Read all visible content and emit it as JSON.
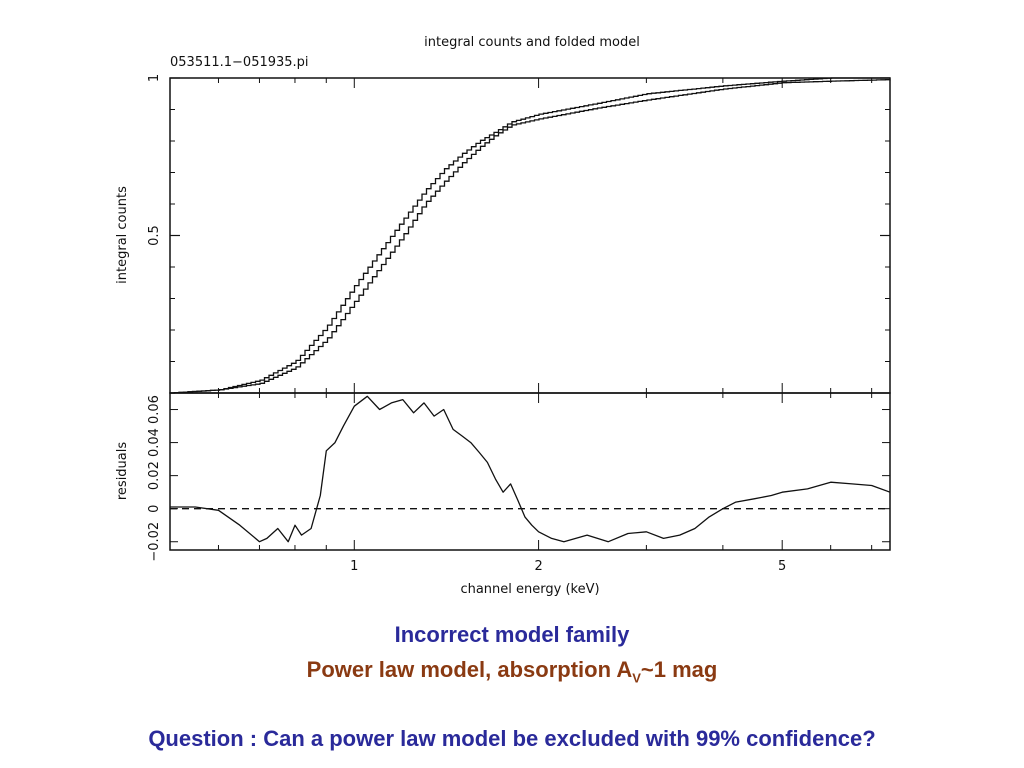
{
  "captions": {
    "line1": "Incorrect model family",
    "line2_prefix": "Power law model, absorption A",
    "line2_sub": "V",
    "line2_suffix": "~1 mag",
    "question": "Question : Can a power law model be excluded with 99% confidence?"
  },
  "chart_data": [
    {
      "type": "line",
      "title": "integral counts and folded model",
      "subtitle": "053511.1−051935.pi",
      "ylabel": "integral counts",
      "xlabel": "",
      "xscale": "log",
      "xlim": [
        0.5,
        7.5
      ],
      "ylim": [
        0,
        1.0
      ],
      "yticks": [
        0.5,
        1
      ],
      "ytick_labels": [
        "0.5",
        "1"
      ],
      "series": [
        {
          "style": "step",
          "x": [
            0.5,
            0.6,
            0.7,
            0.8,
            0.9,
            1.0,
            1.1,
            1.2,
            1.3,
            1.4,
            1.5,
            1.6,
            1.7,
            1.8,
            2.0,
            2.5,
            3.0,
            4.0,
            5.0,
            6.0,
            7.5
          ],
          "y": [
            0.0,
            0.01,
            0.04,
            0.1,
            0.21,
            0.34,
            0.45,
            0.55,
            0.64,
            0.71,
            0.76,
            0.8,
            0.83,
            0.86,
            0.885,
            0.92,
            0.95,
            0.975,
            0.99,
            1.0,
            1.0
          ]
        },
        {
          "style": "step",
          "x": [
            0.5,
            0.6,
            0.7,
            0.8,
            0.9,
            1.0,
            1.1,
            1.2,
            1.3,
            1.4,
            1.5,
            1.6,
            1.7,
            1.8,
            2.0,
            2.5,
            3.0,
            4.0,
            5.0,
            6.0,
            7.5
          ],
          "y": [
            0.0,
            0.01,
            0.03,
            0.08,
            0.17,
            0.29,
            0.4,
            0.5,
            0.6,
            0.67,
            0.73,
            0.78,
            0.82,
            0.85,
            0.87,
            0.905,
            0.93,
            0.965,
            0.985,
            0.99,
            0.995
          ]
        }
      ]
    },
    {
      "type": "line",
      "title": "",
      "xlabel": "channel energy (keV)",
      "ylabel": "residuals",
      "xscale": "log",
      "xlim": [
        0.5,
        7.5
      ],
      "ylim": [
        -0.025,
        0.07
      ],
      "xticks": [
        1,
        2,
        5
      ],
      "xtick_labels": [
        "1",
        "2",
        "5"
      ],
      "yticks": [
        -0.02,
        0,
        0.02,
        0.04,
        0.06
      ],
      "ytick_labels": [
        "−0.02",
        "0",
        "0.02",
        "0.04",
        "0.06"
      ],
      "reference_line": {
        "y": 0,
        "style": "dashed"
      },
      "series": [
        {
          "x": [
            0.5,
            0.55,
            0.6,
            0.65,
            0.7,
            0.72,
            0.75,
            0.78,
            0.8,
            0.82,
            0.85,
            0.88,
            0.9,
            0.93,
            0.96,
            1.0,
            1.05,
            1.1,
            1.15,
            1.2,
            1.25,
            1.3,
            1.35,
            1.4,
            1.45,
            1.5,
            1.55,
            1.6,
            1.65,
            1.7,
            1.75,
            1.8,
            1.85,
            1.9,
            1.95,
            2.0,
            2.1,
            2.2,
            2.4,
            2.6,
            2.8,
            3.0,
            3.2,
            3.4,
            3.6,
            3.8,
            4.0,
            4.2,
            4.5,
            4.8,
            5.0,
            5.5,
            6.0,
            6.5,
            7.0,
            7.5
          ],
          "y": [
            0.001,
            0.001,
            -0.001,
            -0.01,
            -0.02,
            -0.018,
            -0.012,
            -0.02,
            -0.01,
            -0.016,
            -0.012,
            0.008,
            0.035,
            0.04,
            0.05,
            0.062,
            0.068,
            0.06,
            0.064,
            0.066,
            0.058,
            0.064,
            0.056,
            0.06,
            0.048,
            0.044,
            0.04,
            0.034,
            0.028,
            0.018,
            0.01,
            0.015,
            0.005,
            -0.005,
            -0.01,
            -0.014,
            -0.018,
            -0.02,
            -0.016,
            -0.02,
            -0.015,
            -0.014,
            -0.018,
            -0.016,
            -0.012,
            -0.005,
            0.0,
            0.004,
            0.006,
            0.008,
            0.01,
            0.012,
            0.016,
            0.015,
            0.014,
            0.01
          ]
        }
      ]
    }
  ]
}
